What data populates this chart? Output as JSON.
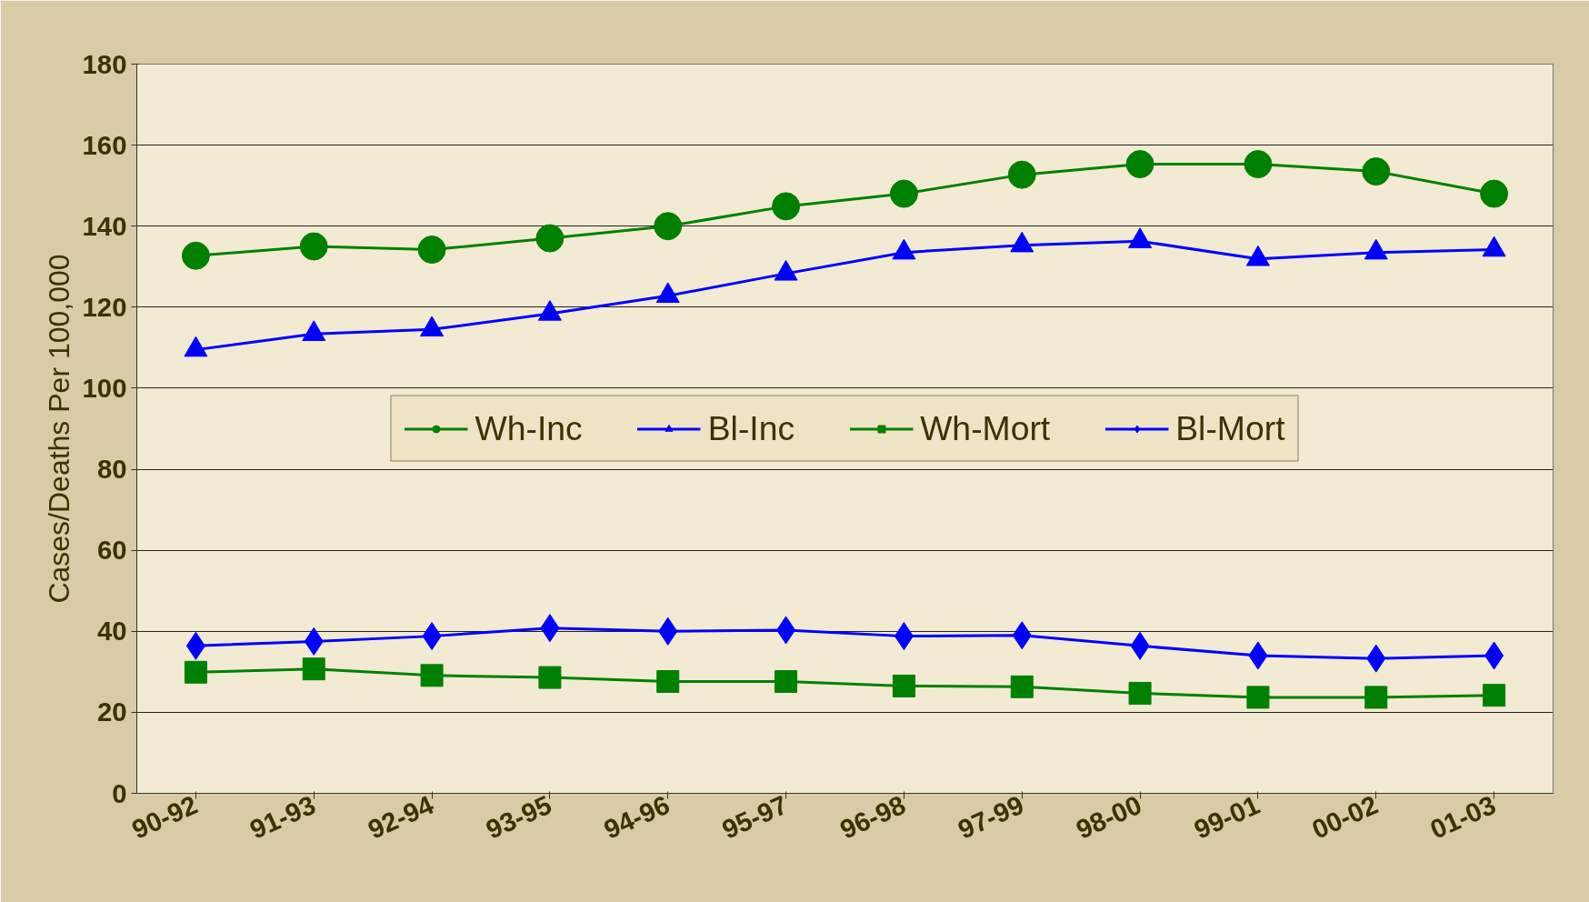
{
  "chart_data": {
    "type": "line",
    "ylabel": "Cases/Deaths Per 100,000",
    "categories": [
      "90-92",
      "91-93",
      "92-94",
      "93-95",
      "94-96",
      "95-97",
      "96-98",
      "97-99",
      "98-00",
      "99-01",
      "00-02",
      "01-03"
    ],
    "series": [
      {
        "name": "Wh-Inc",
        "color": "#008000",
        "marker": "circle",
        "values": [
          132.7,
          135,
          134.2,
          137,
          140,
          144.9,
          148,
          152.7,
          155.3,
          155.3,
          153.5,
          148
        ]
      },
      {
        "name": "Bl-Inc",
        "color": "#0000ff",
        "marker": "triangle",
        "values": [
          109.5,
          113.4,
          114.5,
          118.4,
          122.8,
          128.3,
          133.5,
          135.3,
          136.3,
          131.9,
          133.5,
          134.2
        ]
      },
      {
        "name": "Wh-Mort",
        "color": "#008000",
        "marker": "square",
        "values": [
          29.9,
          30.7,
          29.1,
          28.6,
          27.6,
          27.6,
          26.5,
          26.3,
          24.7,
          23.7,
          23.7,
          24.2
        ]
      },
      {
        "name": "Bl-Mort",
        "color": "#0000ff",
        "marker": "diamond",
        "values": [
          36.4,
          37.5,
          38.8,
          40.8,
          40,
          40.3,
          38.8,
          39,
          36.4,
          34,
          33.3,
          34
        ]
      }
    ],
    "ylim": [
      0,
      180
    ],
    "yticks": [
      0,
      20,
      40,
      60,
      80,
      100,
      120,
      140,
      160,
      180
    ],
    "grid": "y",
    "legend": "center",
    "line_style": "solid"
  }
}
